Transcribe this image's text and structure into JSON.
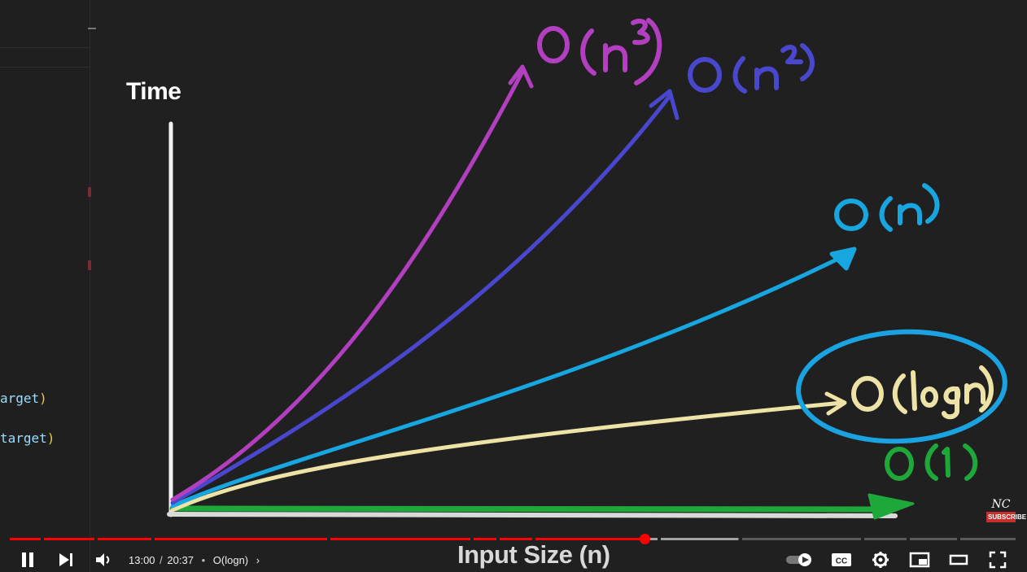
{
  "editor": {
    "code_line_1": "arget",
    "code_line_1_paren": ")",
    "code_line_2": "target",
    "code_line_2_paren": ")"
  },
  "graph": {
    "y_axis_label": "Time",
    "x_axis_label": "Input Size (n)",
    "curves": [
      {
        "label": "O(n³)",
        "color": "#b23fbf"
      },
      {
        "label": "O(n²)",
        "color": "#4a47cf"
      },
      {
        "label": "O(n)",
        "color": "#18a6e0"
      },
      {
        "label": "O(logn)",
        "color": "#eee3a6",
        "highlight_color": "#1aa3e0"
      },
      {
        "label": "O(1)",
        "color": "#1fa83a"
      }
    ],
    "watermark_logo": "NC",
    "watermark_subscribe": "SUBSCRIBE"
  },
  "player": {
    "current_time": "13:00",
    "duration": "20:37",
    "time_separator": "/",
    "chapter_separator": "•",
    "chapter_title": "O(logn)",
    "progress_fraction": 0.628,
    "buffered_fraction": 0.723,
    "accent_color": "#ff0000",
    "icons": [
      "pause-icon",
      "next-icon",
      "volume-icon",
      "autoplay-toggle-icon",
      "captions-icon",
      "settings-icon",
      "miniplayer-icon",
      "theater-mode-icon",
      "fullscreen-icon"
    ],
    "captions_label": "CC"
  }
}
